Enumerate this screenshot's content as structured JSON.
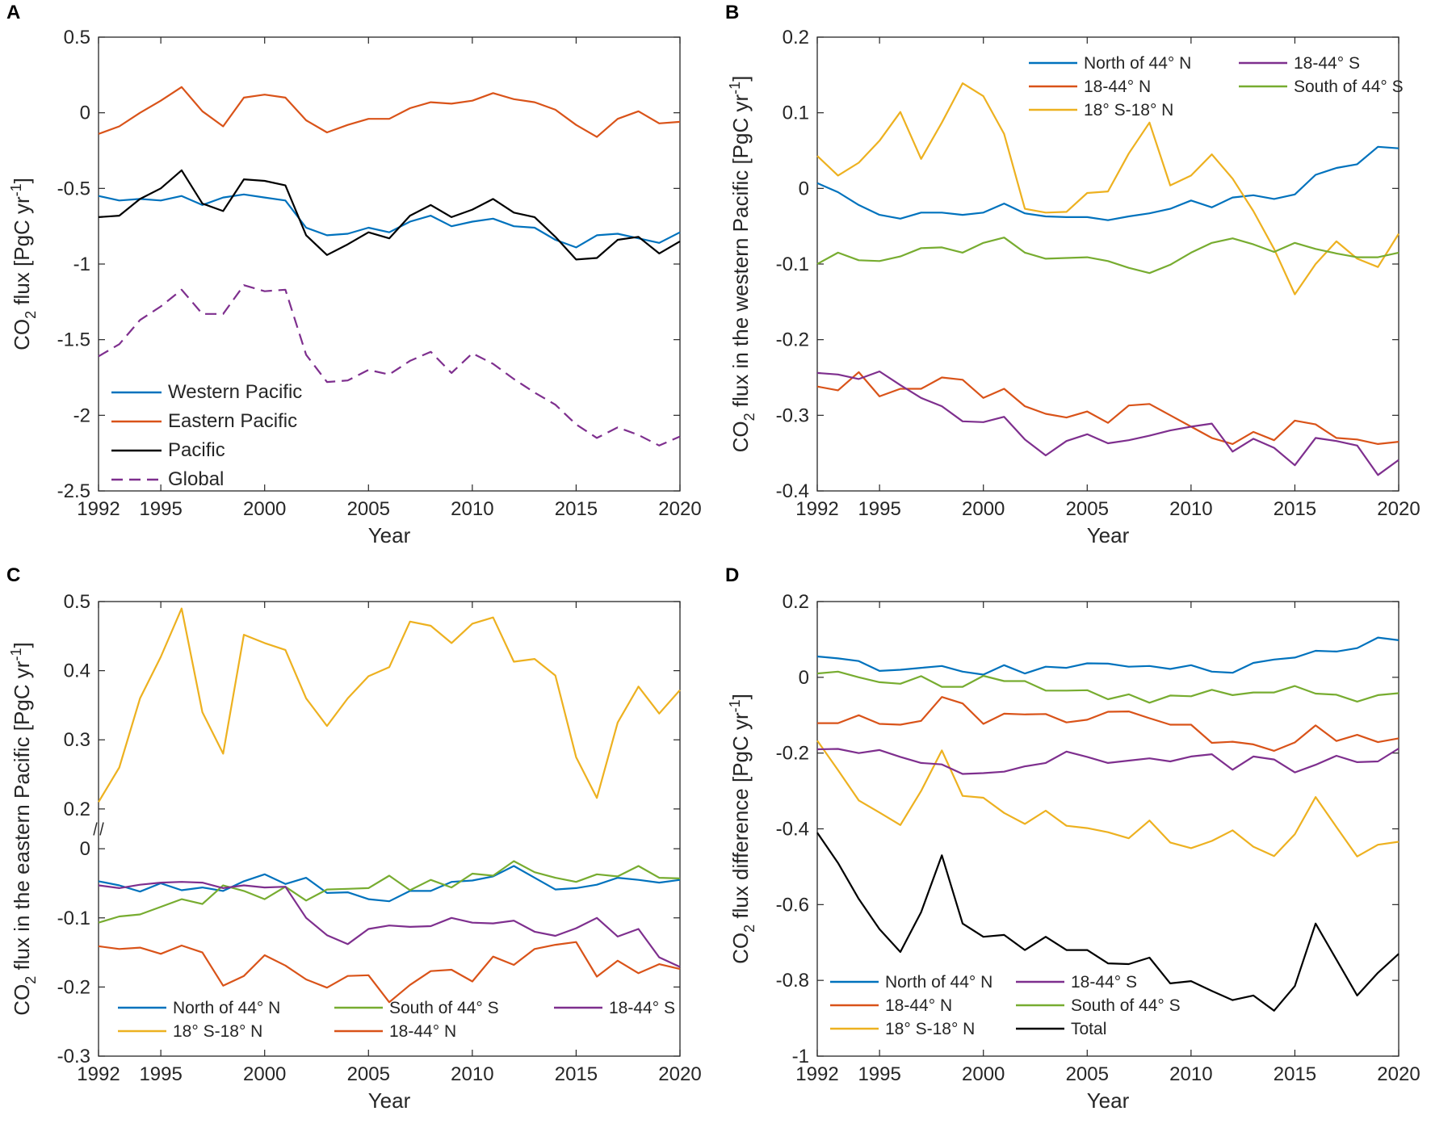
{
  "colors": {
    "blue": "#0072BD",
    "orange": "#D95319",
    "yellow": "#EDB120",
    "purple": "#7E2F8E",
    "green": "#77AC30",
    "black": "#000000"
  },
  "chart_data": [
    {
      "panel": "A",
      "type": "line",
      "xlabel": "Year",
      "ylabel": "CO2 flux [PgC yr-1]",
      "ylabel_parts": {
        "pre": "CO",
        "sub": "2",
        "mid": " flux [PgC yr",
        "sup": "-1",
        "post": "]"
      },
      "xlim": [
        1992,
        2020
      ],
      "ylim": [
        -2.5,
        0.5
      ],
      "xticks": [
        1992,
        1995,
        2000,
        2005,
        2010,
        2015,
        2020
      ],
      "xtick_labels": [
        "1992",
        "1995",
        "2000",
        "2005",
        "2010",
        "2015",
        "2020"
      ],
      "yticks": [
        -2.5,
        -2,
        -1.5,
        -1,
        -0.5,
        0,
        0.5
      ],
      "ytick_labels": [
        "-2.5",
        "-2",
        "-1.5",
        "-1",
        "-0.5",
        "0",
        "0.5"
      ],
      "legend_location": "bottom-left",
      "legend_columns": 1,
      "x": [
        1992,
        1993,
        1994,
        1995,
        1996,
        1997,
        1998,
        1999,
        2000,
        2001,
        2002,
        2003,
        2004,
        2005,
        2006,
        2007,
        2008,
        2009,
        2010,
        2011,
        2012,
        2013,
        2014,
        2015,
        2016,
        2017,
        2018,
        2019,
        2020
      ],
      "series": [
        {
          "name": "Western Pacific",
          "color": "blue",
          "dash": false,
          "values": [
            -0.55,
            -0.58,
            -0.57,
            -0.58,
            -0.55,
            -0.61,
            -0.56,
            -0.54,
            -0.56,
            -0.58,
            -0.76,
            -0.81,
            -0.8,
            -0.76,
            -0.79,
            -0.72,
            -0.68,
            -0.75,
            -0.72,
            -0.7,
            -0.75,
            -0.76,
            -0.84,
            -0.89,
            -0.81,
            -0.8,
            -0.83,
            -0.86,
            -0.79
          ]
        },
        {
          "name": "Eastern Pacific",
          "color": "orange",
          "dash": false,
          "values": [
            -0.14,
            -0.09,
            0.0,
            0.08,
            0.17,
            0.01,
            -0.09,
            0.1,
            0.12,
            0.1,
            -0.05,
            -0.13,
            -0.08,
            -0.04,
            -0.04,
            0.03,
            0.07,
            0.06,
            0.08,
            0.13,
            0.09,
            0.07,
            0.02,
            -0.08,
            -0.16,
            -0.04,
            0.01,
            -0.07,
            -0.06
          ]
        },
        {
          "name": "Pacific",
          "color": "black",
          "dash": false,
          "values": [
            -0.69,
            -0.68,
            -0.57,
            -0.5,
            -0.38,
            -0.6,
            -0.65,
            -0.44,
            -0.45,
            -0.48,
            -0.81,
            -0.94,
            -0.87,
            -0.79,
            -0.83,
            -0.68,
            -0.61,
            -0.69,
            -0.64,
            -0.57,
            -0.66,
            -0.69,
            -0.82,
            -0.97,
            -0.96,
            -0.84,
            -0.82,
            -0.93,
            -0.85
          ]
        },
        {
          "name": "Global",
          "color": "purple",
          "dash": true,
          "values": [
            -1.61,
            -1.53,
            -1.37,
            -1.28,
            -1.17,
            -1.33,
            -1.33,
            -1.14,
            -1.18,
            -1.17,
            -1.6,
            -1.78,
            -1.77,
            -1.7,
            -1.73,
            -1.64,
            -1.58,
            -1.72,
            -1.59,
            -1.66,
            -1.76,
            -1.85,
            -1.93,
            -2.06,
            -2.15,
            -2.08,
            -2.13,
            -2.2,
            -2.14
          ]
        }
      ]
    },
    {
      "panel": "B",
      "type": "line",
      "xlabel": "Year",
      "ylabel": "CO2 flux in the western Pacific [PgC yr-1]",
      "ylabel_parts": {
        "pre": "CO",
        "sub": "2",
        "mid": " flux in the western Pacific [PgC yr",
        "sup": "-1",
        "post": "]"
      },
      "xlim": [
        1992,
        2020
      ],
      "ylim": [
        -0.4,
        0.2
      ],
      "xticks": [
        1992,
        1995,
        2000,
        2005,
        2010,
        2015,
        2020
      ],
      "xtick_labels": [
        "1992",
        "1995",
        "2000",
        "2005",
        "2010",
        "2015",
        "2020"
      ],
      "yticks": [
        -0.4,
        -0.3,
        -0.2,
        -0.1,
        0,
        0.1,
        0.2
      ],
      "ytick_labels": [
        "-0.4",
        "-0.3",
        "-0.2",
        "-0.1",
        "0",
        "0.1",
        "0.2"
      ],
      "legend_location": "top-right",
      "legend_columns": 2,
      "legend_order": [
        0,
        3,
        1,
        4,
        2
      ],
      "x": [
        1992,
        1993,
        1994,
        1995,
        1996,
        1997,
        1998,
        1999,
        2000,
        2001,
        2002,
        2003,
        2004,
        2005,
        2006,
        2007,
        2008,
        2009,
        2010,
        2011,
        2012,
        2013,
        2014,
        2015,
        2016,
        2017,
        2018,
        2019,
        2020
      ],
      "series": [
        {
          "name": "North of 44° N",
          "color": "blue",
          "values": [
            0.007,
            -0.005,
            -0.022,
            -0.035,
            -0.04,
            -0.032,
            -0.032,
            -0.035,
            -0.032,
            -0.02,
            -0.033,
            -0.037,
            -0.038,
            -0.038,
            -0.042,
            -0.037,
            -0.033,
            -0.027,
            -0.016,
            -0.025,
            -0.012,
            -0.009,
            -0.014,
            -0.008,
            0.018,
            0.027,
            0.032,
            0.055,
            0.053
          ]
        },
        {
          "name": "18-44° N",
          "color": "orange",
          "values": [
            -0.262,
            -0.267,
            -0.243,
            -0.275,
            -0.265,
            -0.265,
            -0.25,
            -0.253,
            -0.277,
            -0.265,
            -0.288,
            -0.298,
            -0.303,
            -0.295,
            -0.31,
            -0.287,
            -0.285,
            -0.3,
            -0.315,
            -0.33,
            -0.338,
            -0.322,
            -0.333,
            -0.307,
            -0.312,
            -0.33,
            -0.332,
            -0.338,
            -0.335
          ]
        },
        {
          "name": "18° S-18° N",
          "color": "yellow",
          "values": [
            0.043,
            0.017,
            0.034,
            0.063,
            0.101,
            0.039,
            0.087,
            0.139,
            0.122,
            0.072,
            -0.027,
            -0.032,
            -0.031,
            -0.006,
            -0.004,
            0.046,
            0.087,
            0.004,
            0.017,
            0.045,
            0.013,
            -0.03,
            -0.08,
            -0.14,
            -0.1,
            -0.07,
            -0.093,
            -0.104,
            -0.06
          ]
        },
        {
          "name": "18-44° S",
          "color": "purple",
          "values": [
            -0.244,
            -0.246,
            -0.252,
            -0.242,
            -0.26,
            -0.277,
            -0.288,
            -0.308,
            -0.309,
            -0.302,
            -0.332,
            -0.353,
            -0.334,
            -0.325,
            -0.337,
            -0.333,
            -0.327,
            -0.32,
            -0.315,
            -0.311,
            -0.348,
            -0.331,
            -0.343,
            -0.366,
            -0.33,
            -0.334,
            -0.34,
            -0.379,
            -0.359
          ]
        },
        {
          "name": "South of 44° S",
          "color": "green",
          "values": [
            -0.1,
            -0.085,
            -0.095,
            -0.096,
            -0.09,
            -0.079,
            -0.078,
            -0.085,
            -0.072,
            -0.065,
            -0.085,
            -0.093,
            -0.092,
            -0.091,
            -0.096,
            -0.105,
            -0.112,
            -0.101,
            -0.085,
            -0.072,
            -0.066,
            -0.074,
            -0.084,
            -0.072,
            -0.08,
            -0.086,
            -0.091,
            -0.091,
            -0.085
          ]
        }
      ]
    },
    {
      "panel": "C",
      "type": "line",
      "xlabel": "Year",
      "ylabel": "CO2 flux in the eastern Pacific [PgC yr-1]",
      "ylabel_parts": {
        "pre": "CO",
        "sub": "2",
        "mid": " flux in the eastern Pacific [PgC yr",
        "sup": "-1",
        "post": "]"
      },
      "xlim": [
        1992,
        2020
      ],
      "ylim": [
        -0.3,
        0.5
      ],
      "axis_break": {
        "from": 0,
        "to": 0.2
      },
      "xticks": [
        1992,
        1995,
        2000,
        2005,
        2010,
        2015,
        2020
      ],
      "xtick_labels": [
        "1992",
        "1995",
        "2000",
        "2005",
        "2010",
        "2015",
        "2020"
      ],
      "yticks": [
        -0.3,
        -0.2,
        -0.1,
        0,
        0.2,
        0.3,
        0.4,
        0.5
      ],
      "ytick_labels": [
        "-0.3",
        "-0.2",
        "-0.1",
        "0",
        "0.2",
        "0.3",
        "0.4",
        "0.5"
      ],
      "legend_location": "bottom",
      "legend_columns": 3,
      "legend_order": [
        0,
        2,
        4,
        1,
        3
      ],
      "x": [
        1992,
        1993,
        1994,
        1995,
        1996,
        1997,
        1998,
        1999,
        2000,
        2001,
        2002,
        2003,
        2004,
        2005,
        2006,
        2007,
        2008,
        2009,
        2010,
        2011,
        2012,
        2013,
        2014,
        2015,
        2016,
        2017,
        2018,
        2019,
        2020
      ],
      "series": [
        {
          "name": "North of 44° N",
          "color": "blue",
          "values": [
            -0.047,
            -0.053,
            -0.062,
            -0.05,
            -0.06,
            -0.056,
            -0.061,
            -0.047,
            -0.037,
            -0.051,
            -0.042,
            -0.064,
            -0.063,
            -0.073,
            -0.076,
            -0.061,
            -0.061,
            -0.048,
            -0.046,
            -0.04,
            -0.025,
            -0.042,
            -0.059,
            -0.057,
            -0.052,
            -0.042,
            -0.045,
            -0.049,
            -0.045
          ]
        },
        {
          "name": "18° S-18° N",
          "color": "yellow",
          "values": [
            0.21,
            0.26,
            0.36,
            0.42,
            0.49,
            0.34,
            0.28,
            0.452,
            0.44,
            0.43,
            0.36,
            0.32,
            0.36,
            0.392,
            0.405,
            0.471,
            0.465,
            0.44,
            0.468,
            0.477,
            0.413,
            0.417,
            0.393,
            0.275,
            0.216,
            0.325,
            0.377,
            0.338,
            0.372
          ]
        },
        {
          "name": "South of 44° S",
          "color": "green",
          "values": [
            -0.107,
            -0.098,
            -0.095,
            -0.084,
            -0.073,
            -0.08,
            -0.053,
            -0.061,
            -0.073,
            -0.055,
            -0.075,
            -0.059,
            -0.058,
            -0.057,
            -0.039,
            -0.06,
            -0.045,
            -0.056,
            -0.036,
            -0.039,
            -0.018,
            -0.034,
            -0.042,
            -0.048,
            -0.037,
            -0.04,
            -0.025,
            -0.042,
            -0.043
          ]
        },
        {
          "name": "18-44° N",
          "color": "orange",
          "values": [
            -0.141,
            -0.145,
            -0.143,
            -0.152,
            -0.14,
            -0.15,
            -0.198,
            -0.184,
            -0.154,
            -0.169,
            -0.189,
            -0.201,
            -0.184,
            -0.183,
            -0.222,
            -0.197,
            -0.177,
            -0.175,
            -0.192,
            -0.156,
            -0.168,
            -0.145,
            -0.139,
            -0.135,
            -0.185,
            -0.162,
            -0.18,
            -0.167,
            -0.174
          ]
        },
        {
          "name": "18-44° S",
          "color": "purple",
          "values": [
            -0.053,
            -0.057,
            -0.052,
            -0.049,
            -0.048,
            -0.049,
            -0.057,
            -0.053,
            -0.056,
            -0.055,
            -0.1,
            -0.125,
            -0.138,
            -0.116,
            -0.111,
            -0.113,
            -0.112,
            -0.1,
            -0.107,
            -0.108,
            -0.104,
            -0.12,
            -0.126,
            -0.115,
            -0.1,
            -0.127,
            -0.116,
            -0.157,
            -0.171
          ]
        }
      ]
    },
    {
      "panel": "D",
      "type": "line",
      "xlabel": "Year",
      "ylabel": "CO2 flux difference [PgC yr-1]",
      "ylabel_parts": {
        "pre": "CO",
        "sub": "2",
        "mid": " flux difference [PgC yr",
        "sup": "-1",
        "post": "]"
      },
      "xlim": [
        1992,
        2020
      ],
      "ylim": [
        -1,
        0.2
      ],
      "xticks": [
        1992,
        1995,
        2000,
        2005,
        2010,
        2015,
        2020
      ],
      "xtick_labels": [
        "1992",
        "1995",
        "2000",
        "2005",
        "2010",
        "2015",
        "2020"
      ],
      "yticks": [
        -1,
        -0.8,
        -0.6,
        -0.4,
        -0.2,
        0,
        0.2
      ],
      "ytick_labels": [
        "-1",
        "-0.8",
        "-0.6",
        "-0.4",
        "-0.2",
        "0",
        "0.2"
      ],
      "legend_location": "bottom-left",
      "legend_columns": 2,
      "legend_order": [
        0,
        3,
        1,
        4,
        2,
        5
      ],
      "x": [
        1992,
        1993,
        1994,
        1995,
        1996,
        1997,
        1998,
        1999,
        2000,
        2001,
        2002,
        2003,
        2004,
        2005,
        2006,
        2007,
        2008,
        2009,
        2010,
        2011,
        2012,
        2013,
        2014,
        2015,
        2016,
        2017,
        2018,
        2019,
        2020
      ],
      "series": [
        {
          "name": "North of 44° N",
          "color": "blue",
          "values": [
            0.055,
            0.05,
            0.043,
            0.017,
            0.02,
            0.025,
            0.03,
            0.015,
            0.007,
            0.032,
            0.01,
            0.028,
            0.025,
            0.037,
            0.036,
            0.028,
            0.03,
            0.022,
            0.032,
            0.015,
            0.012,
            0.038,
            0.047,
            0.052,
            0.07,
            0.068,
            0.077,
            0.105,
            0.098
          ]
        },
        {
          "name": "18-44° N",
          "color": "orange",
          "values": [
            -0.121,
            -0.121,
            -0.1,
            -0.123,
            -0.125,
            -0.115,
            -0.052,
            -0.069,
            -0.123,
            -0.096,
            -0.098,
            -0.097,
            -0.119,
            -0.112,
            -0.091,
            -0.09,
            -0.108,
            -0.125,
            -0.125,
            -0.173,
            -0.17,
            -0.177,
            -0.194,
            -0.172,
            -0.127,
            -0.168,
            -0.152,
            -0.171,
            -0.161
          ]
        },
        {
          "name": "18° S-18° N",
          "color": "yellow",
          "values": [
            -0.167,
            -0.245,
            -0.325,
            -0.357,
            -0.39,
            -0.3,
            -0.193,
            -0.313,
            -0.318,
            -0.358,
            -0.387,
            -0.352,
            -0.392,
            -0.398,
            -0.409,
            -0.425,
            -0.378,
            -0.436,
            -0.451,
            -0.432,
            -0.404,
            -0.447,
            -0.472,
            -0.414,
            -0.316,
            -0.395,
            -0.473,
            -0.442,
            -0.434
          ]
        },
        {
          "name": "18-44° S",
          "color": "purple",
          "values": [
            -0.19,
            -0.189,
            -0.2,
            -0.192,
            -0.21,
            -0.226,
            -0.23,
            -0.255,
            -0.253,
            -0.249,
            -0.235,
            -0.226,
            -0.196,
            -0.21,
            -0.226,
            -0.22,
            -0.214,
            -0.222,
            -0.209,
            -0.203,
            -0.244,
            -0.209,
            -0.217,
            -0.251,
            -0.231,
            -0.207,
            -0.224,
            -0.222,
            -0.188
          ]
        },
        {
          "name": "South of 44° S",
          "color": "green",
          "values": [
            0.01,
            0.015,
            0.0,
            -0.013,
            -0.017,
            0.003,
            -0.025,
            -0.025,
            0.004,
            -0.01,
            -0.01,
            -0.035,
            -0.035,
            -0.034,
            -0.058,
            -0.045,
            -0.067,
            -0.048,
            -0.05,
            -0.033,
            -0.047,
            -0.04,
            -0.04,
            -0.023,
            -0.043,
            -0.046,
            -0.064,
            -0.047,
            -0.042
          ]
        },
        {
          "name": "Total",
          "color": "black",
          "values": [
            -0.41,
            -0.49,
            -0.585,
            -0.665,
            -0.725,
            -0.62,
            -0.47,
            -0.65,
            -0.685,
            -0.68,
            -0.72,
            -0.685,
            -0.72,
            -0.72,
            -0.755,
            -0.757,
            -0.74,
            -0.808,
            -0.802,
            -0.828,
            -0.852,
            -0.84,
            -0.88,
            -0.815,
            -0.65,
            -0.745,
            -0.84,
            -0.78,
            -0.73
          ]
        }
      ]
    }
  ]
}
